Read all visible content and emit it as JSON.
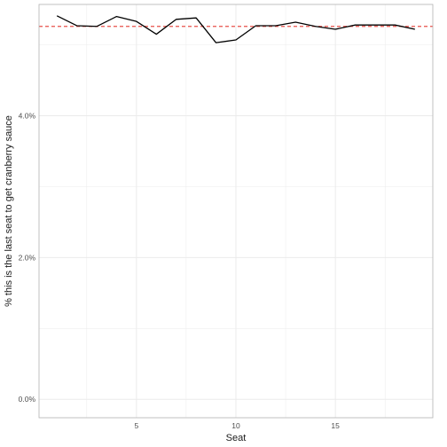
{
  "chart_data": {
    "type": "line",
    "title": "",
    "xlabel": "Seat",
    "ylabel": "% this is the last seat to get cranberry sauce",
    "x": [
      1,
      2,
      3,
      4,
      5,
      6,
      7,
      8,
      9,
      10,
      11,
      12,
      13,
      14,
      15,
      16,
      17,
      18,
      19
    ],
    "series": [
      {
        "values": [
          0.0541,
          0.0527,
          0.0526,
          0.054,
          0.0533,
          0.0515,
          0.0536,
          0.0538,
          0.0503,
          0.0507,
          0.0527,
          0.0527,
          0.0532,
          0.0526,
          0.0522,
          0.0528,
          0.0528,
          0.0528,
          0.0522
        ],
        "color": "#000000"
      }
    ],
    "reference_line": {
      "y": 0.0526,
      "color": "#e8504a",
      "style": "dashed"
    },
    "xlim": [
      0.1,
      19.9
    ],
    "ylim": [
      -0.0026,
      0.0557
    ],
    "x_ticks": [
      5,
      10,
      15
    ],
    "x_tick_labels": [
      "5",
      "10",
      "15"
    ],
    "x_minor_ticks": [
      2.5,
      7.5,
      12.5,
      17.5
    ],
    "y_ticks": [
      0.0,
      0.02,
      0.04
    ],
    "y_tick_labels": [
      "0.0%",
      "2.0%",
      "4.0%"
    ],
    "y_minor_ticks": [
      0.01,
      0.03,
      0.05
    ],
    "grid": true,
    "legend": "none",
    "panel_border": "#b3b3b3",
    "grid_color": "#ebebeb"
  }
}
